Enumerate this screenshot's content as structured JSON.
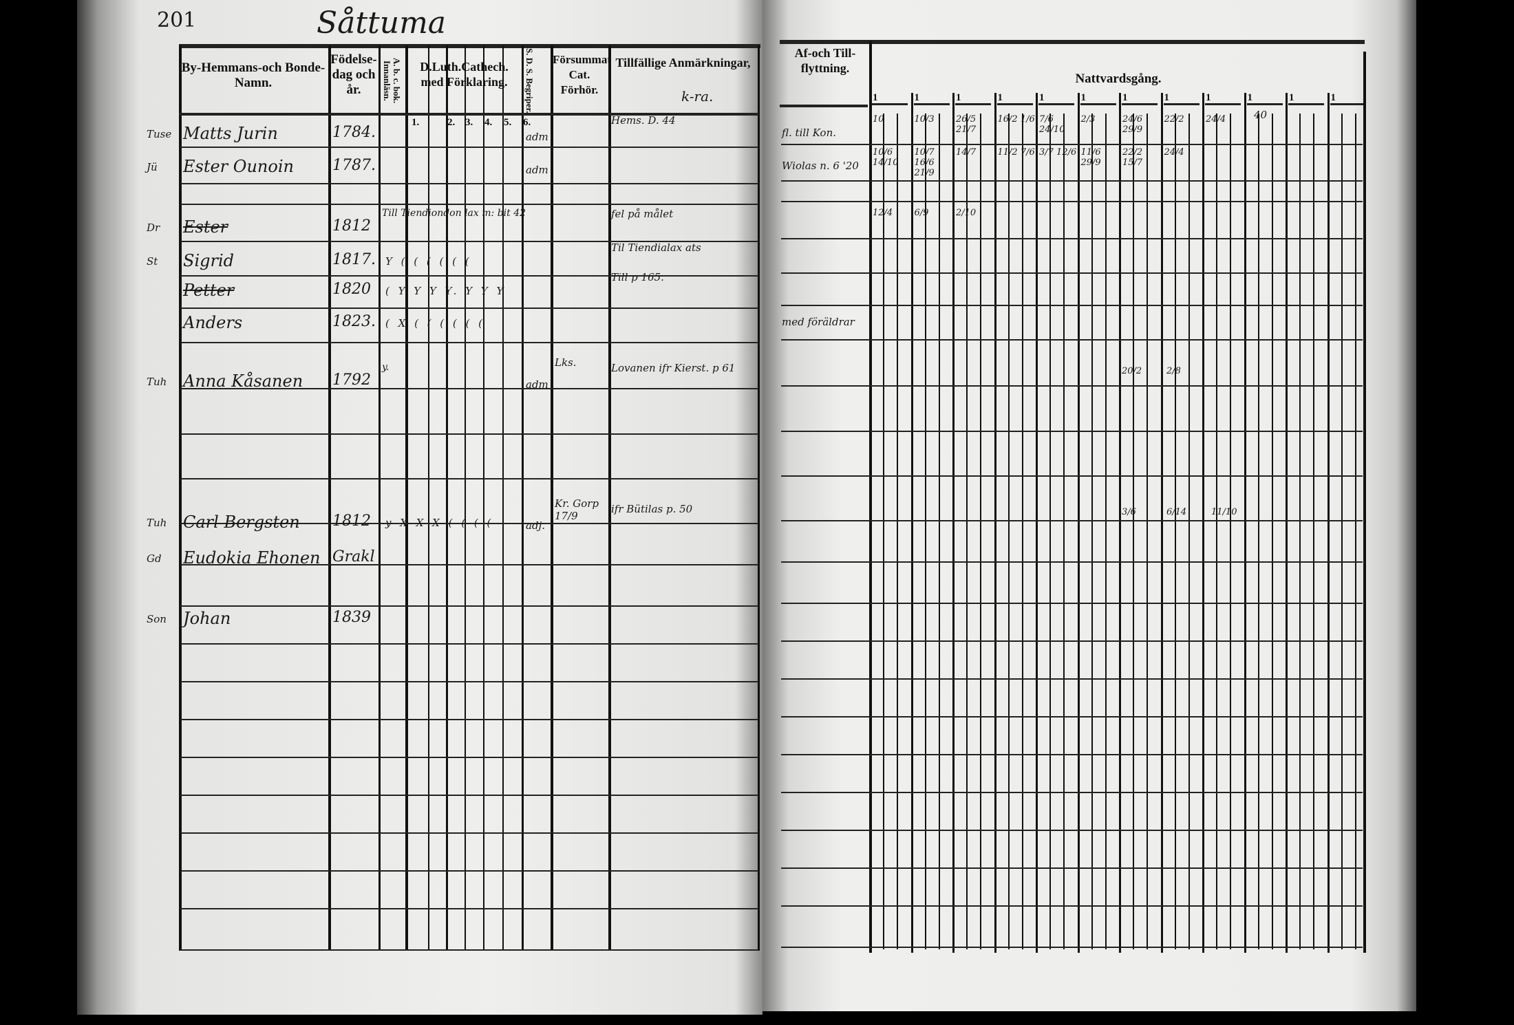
{
  "page_number": "201",
  "village_title": "Såttuma",
  "left_headers": {
    "name": "By-Hemmans-och Bonde-Namn.",
    "birth": "Födelse-dag och år.",
    "abc": "A. b. c. bok. Innanläsn.",
    "catech": "D.Luth.Cathech. med Förklaring.",
    "catech_nums": [
      "1.",
      "2.",
      "3.",
      "4.",
      "5.",
      "6."
    ],
    "sds": "S. D. S. Begriper.",
    "forsumm": "Försummat Cat. Förhör.",
    "remarks": "Tillfällige Anmärkningar,",
    "remarks_note": "k-ra."
  },
  "right_headers": {
    "moving": "Af-och Till-flyttning.",
    "communion": "Nattvardsgång.",
    "group_labels": [
      "1",
      "1",
      "1",
      "1",
      "1",
      "1",
      "1",
      "1",
      "1",
      "1",
      "1",
      "1"
    ],
    "group_note": "40"
  },
  "entries": [
    {
      "margin": "Tuse",
      "name": "Matts Jurin",
      "birth": "1784.",
      "sds": "adm",
      "remark": "Hems. D. 44",
      "moving": "fl. till Kon.",
      "communion": [
        "10",
        "10/3",
        "26/5 21/7",
        "16/2 1/6",
        "7/6 24/10",
        "2/3",
        "24/6 29/9",
        "22/2",
        "24/4"
      ]
    },
    {
      "margin": "Jü",
      "name": "Ester Ounoin",
      "birth": "1787.",
      "sds": "adm",
      "remark": "",
      "moving": "Wiolas n. 6 '20",
      "communion": [
        "10/6 14/10",
        "10/7 16/6 21/9",
        "14/7",
        "11/2 7/6",
        "3/7 12/6",
        "11/6 29/9",
        "22/2 15/7",
        "24/4"
      ]
    },
    {
      "margin": "Dr",
      "name": "Ester",
      "struck": true,
      "birth": "1812",
      "abc": "Till Tiendiondon lax m: bit 42",
      "remark": "fel på målet",
      "communion": [
        "12/4",
        "6/9",
        "2/10"
      ]
    },
    {
      "margin": "St",
      "name": "Sigrid",
      "birth": "1817.",
      "marks": "Y ( ( ( ( ( (",
      "remark": "Til Tiendialax ats"
    },
    {
      "name": "Petter",
      "struck": true,
      "birth": "1820",
      "marks": "( Y Y Y Y. Y Y Y",
      "remark": "Till p 165."
    },
    {
      "name": "Anders",
      "birth": "1823.",
      "marks": "( X ( ( ( ( ( (",
      "moving": "med föräldrar"
    },
    {
      "margin": "Tuh",
      "name": "Anna Kåsanen",
      "birth": "1792",
      "abc": "y.",
      "sds": "adm",
      "forsumm": "Lks.",
      "remark": "Lovanen ifr Kierst. p 61",
      "communion_far": [
        "20/2",
        "2/8"
      ]
    },
    {
      "margin": "Tuh",
      "name": "Carl Bergsten",
      "birth": "1812",
      "marks": "y X X X ( ( ( (",
      "sds": "adj.",
      "forsumm": "Kr. Gorp 17/9",
      "remark": "ifr Bütilas p. 50",
      "communion_far": [
        "3/6",
        "6/14",
        "11/10"
      ]
    },
    {
      "margin": "Gd",
      "name": "Eudokia Ehonen",
      "birth": "Grakl"
    },
    {
      "margin": "Son",
      "name": "Johan",
      "birth": "1839"
    }
  ]
}
